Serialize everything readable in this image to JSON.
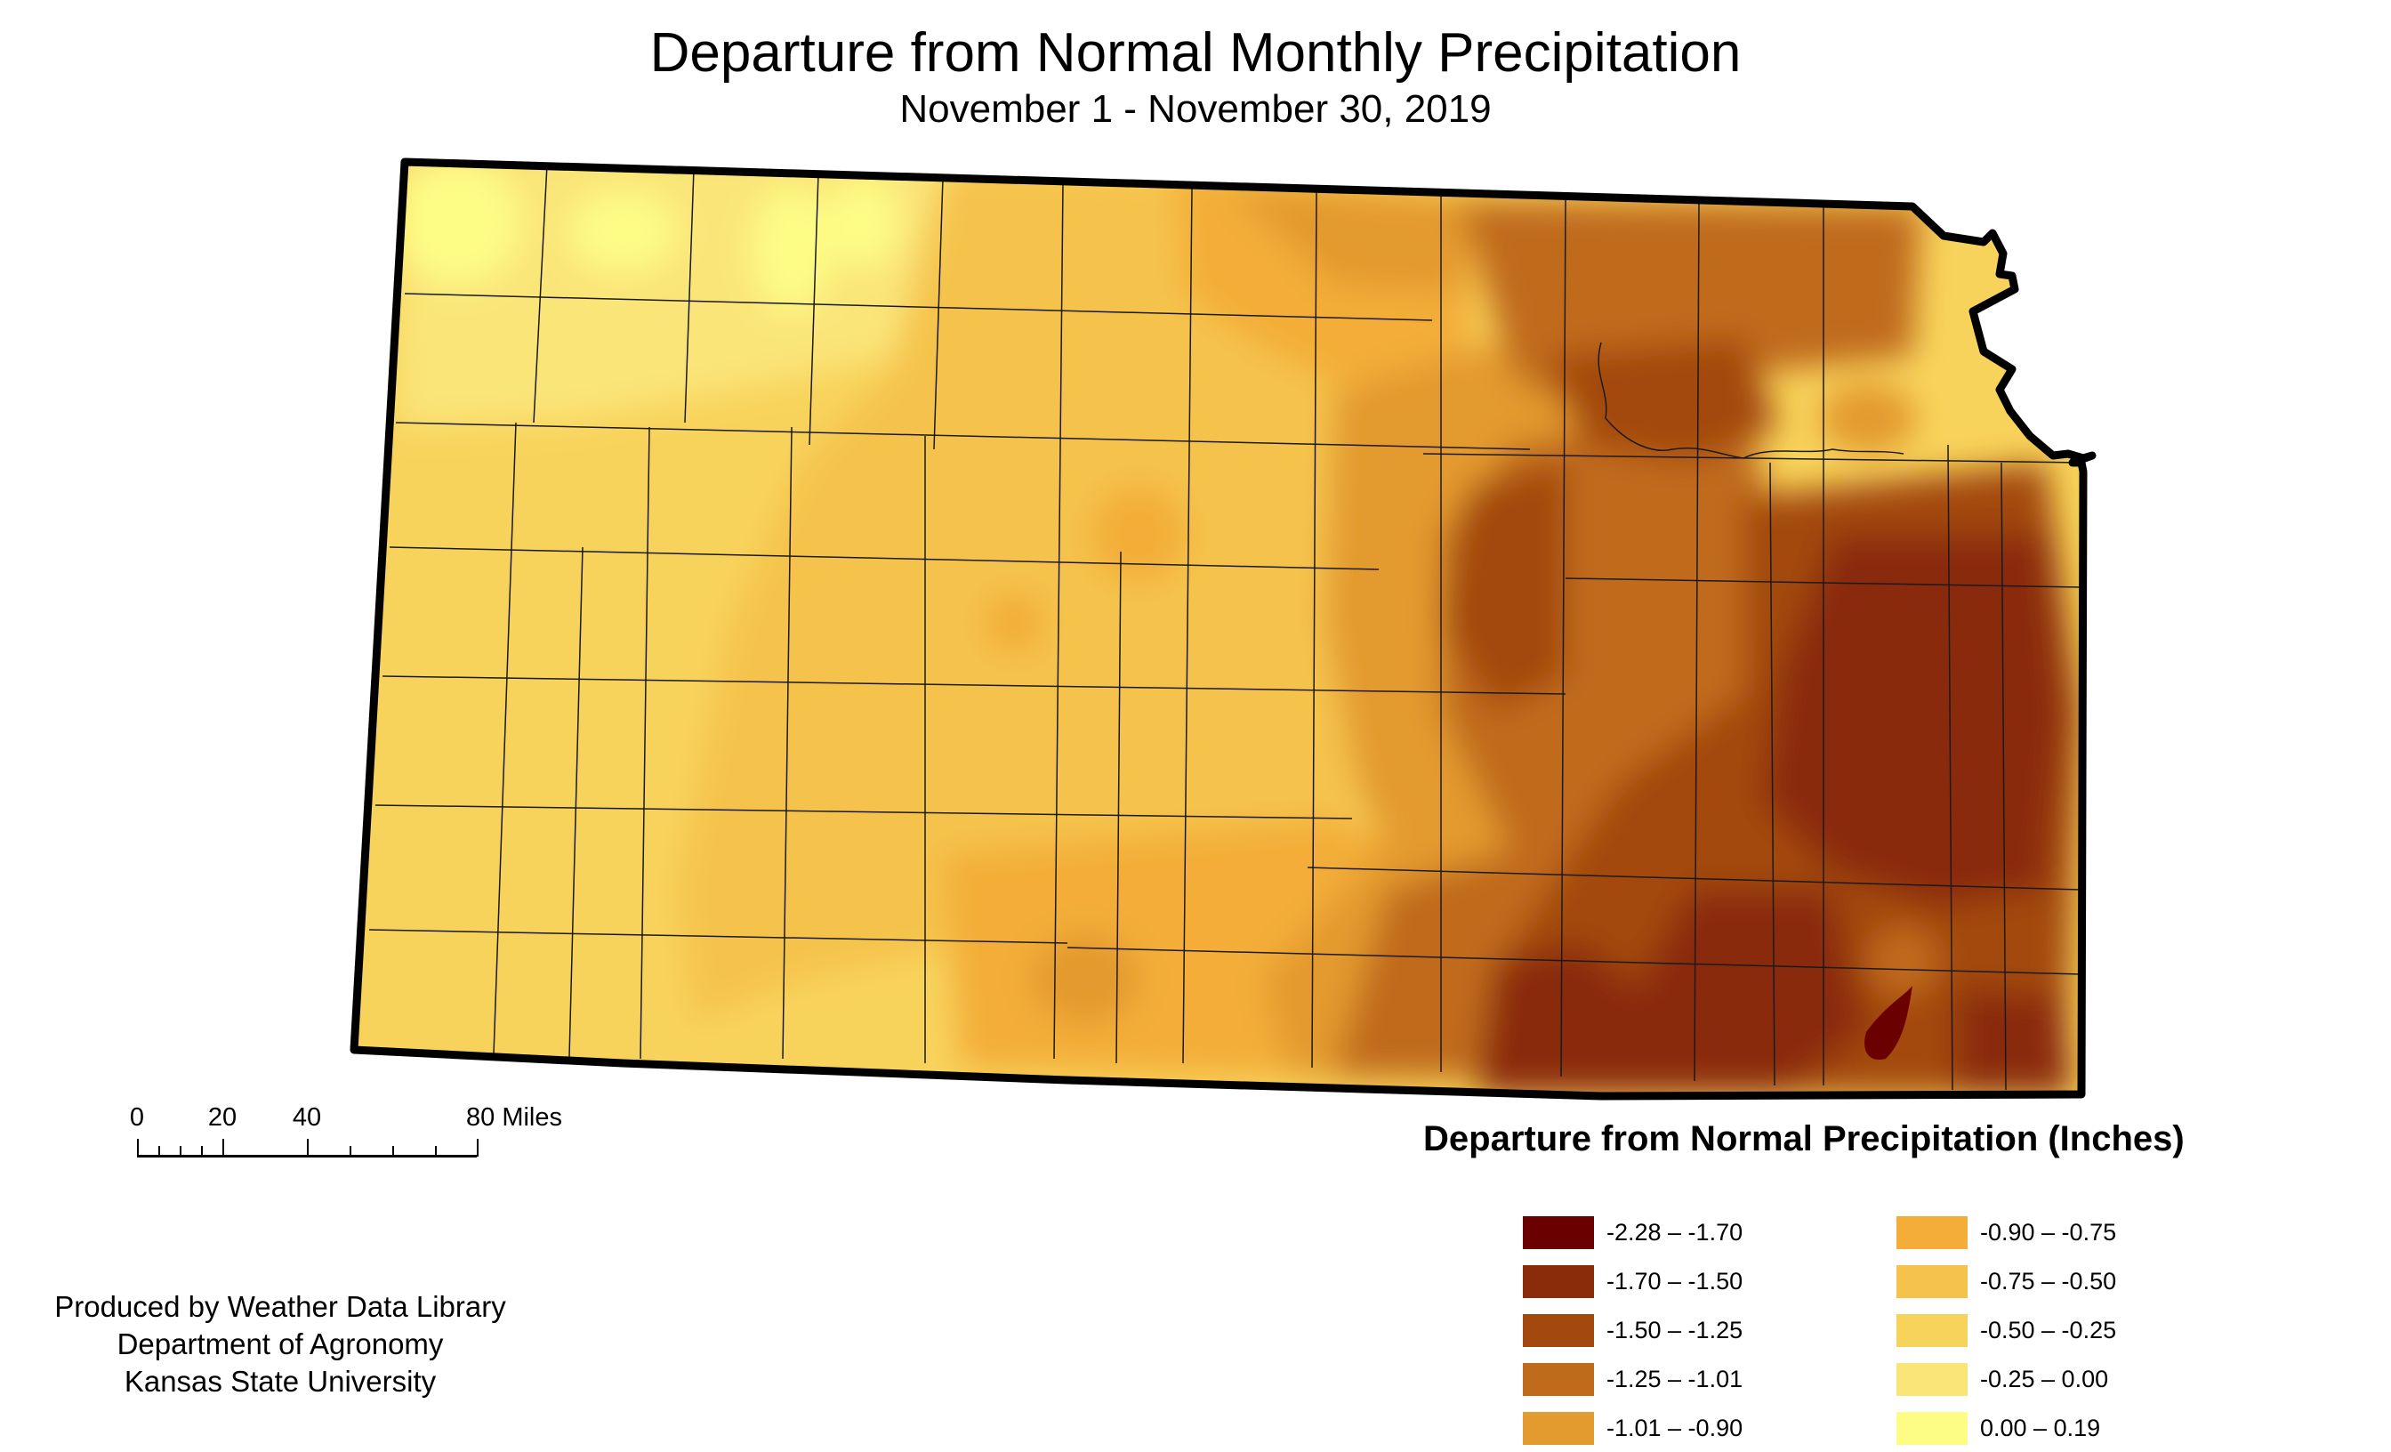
{
  "title": "Departure from Normal Monthly Precipitation",
  "subtitle": "November 1 - November 30, 2019",
  "scale": {
    "labels": [
      "0",
      "20",
      "40",
      "80 Miles"
    ]
  },
  "credits": {
    "line1": "Produced by Weather Data Library",
    "line2": "Department of Agronomy",
    "line3": "Kansas State University"
  },
  "legend": {
    "title": "Departure from Normal Precipitation (Inches)",
    "items": [
      {
        "label": "-2.28 – -1.70",
        "color": "#6b0000"
      },
      {
        "label": "-1.70 – -1.50",
        "color": "#8a2b0a"
      },
      {
        "label": "-1.50 – -1.25",
        "color": "#a3480f"
      },
      {
        "label": "-1.25 – -1.01",
        "color": "#c06a1c"
      },
      {
        "label": "-1.01 – -0.90",
        "color": "#e39a2e"
      },
      {
        "label": "-0.90 – -0.75",
        "color": "#f3ad38"
      },
      {
        "label": "-0.75 – -0.50",
        "color": "#f5c34c"
      },
      {
        "label": "-0.50 – -0.25",
        "color": "#f8d35c"
      },
      {
        "label": "-0.25 – 0.00",
        "color": "#fae579"
      },
      {
        "label": "0.00 – 0.19",
        "color": "#fdfd85"
      }
    ]
  }
}
